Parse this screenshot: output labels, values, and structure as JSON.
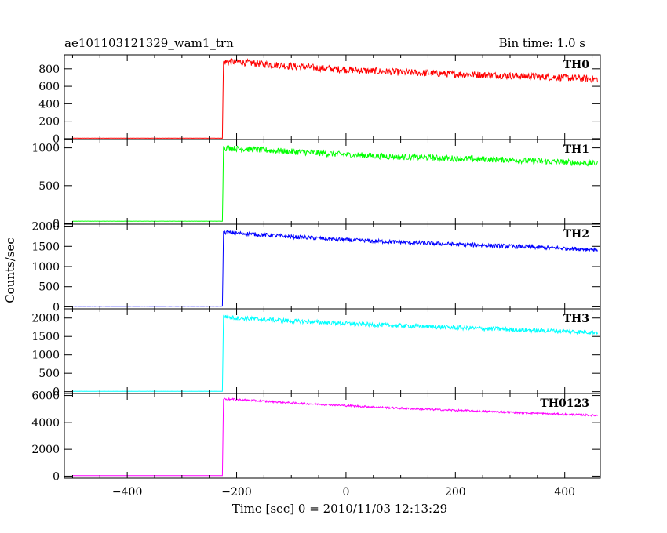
{
  "chart_data": {
    "type": "line",
    "title": "ae101103121329_wam1_trn",
    "bin_time": "Bin time: 1.0 s",
    "xlabel": "Time [sec] 0 = 2010/11/03 12:13:29",
    "ylabel": "Counts/sec",
    "xlim": [
      -515,
      465
    ],
    "xticks": [
      -400,
      -200,
      0,
      200,
      400
    ],
    "onset_time": -225,
    "data_range": [
      -500,
      460
    ],
    "panels": [
      {
        "name": "TH0",
        "color": "#ff0000",
        "ylim": [
          -10,
          960
        ],
        "yticks": [
          0,
          200,
          400,
          600,
          800
        ],
        "x": [
          -500,
          -226,
          -224,
          -200,
          -100,
          0,
          100,
          200,
          300,
          400,
          460
        ],
        "y": [
          5,
          5,
          880,
          880,
          830,
          790,
          760,
          740,
          720,
          700,
          680
        ],
        "noise": 40
      },
      {
        "name": "TH1",
        "color": "#00ff00",
        "ylim": [
          -10,
          1110
        ],
        "yticks": [
          0,
          500,
          1000
        ],
        "x": [
          -500,
          -226,
          -224,
          -200,
          -100,
          0,
          100,
          200,
          300,
          400,
          460
        ],
        "y": [
          30,
          30,
          1000,
          990,
          950,
          910,
          880,
          860,
          840,
          810,
          790
        ],
        "noise": 40
      },
      {
        "name": "TH2",
        "color": "#0000ff",
        "ylim": [
          -50,
          2050
        ],
        "yticks": [
          0,
          500,
          1000,
          1500,
          2000
        ],
        "x": [
          -500,
          -226,
          -224,
          -200,
          -100,
          0,
          100,
          200,
          300,
          400,
          460
        ],
        "y": [
          15,
          15,
          1850,
          1830,
          1740,
          1660,
          1600,
          1550,
          1500,
          1450,
          1420
        ],
        "noise": 50
      },
      {
        "name": "TH3",
        "color": "#00ffff",
        "ylim": [
          -50,
          2250
        ],
        "yticks": [
          0,
          500,
          1000,
          1500,
          2000
        ],
        "x": [
          -500,
          -226,
          -224,
          -200,
          -100,
          0,
          100,
          200,
          300,
          400,
          460
        ],
        "y": [
          10,
          10,
          2050,
          2000,
          1920,
          1850,
          1790,
          1740,
          1690,
          1640,
          1610
        ],
        "noise": 60
      },
      {
        "name": "TH0123",
        "color": "#ff00ff",
        "ylim": [
          -150,
          6150
        ],
        "yticks": [
          0,
          2000,
          4000,
          6000
        ],
        "x": [
          -500,
          -226,
          -224,
          -200,
          -100,
          0,
          100,
          200,
          300,
          400,
          460
        ],
        "y": [
          40,
          40,
          5750,
          5700,
          5450,
          5250,
          5050,
          4900,
          4750,
          4600,
          4520
        ],
        "noise": 70
      }
    ]
  }
}
